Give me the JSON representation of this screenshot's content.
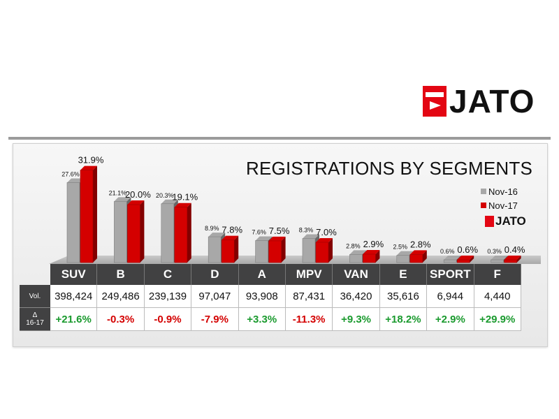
{
  "logo": {
    "text": "JATO"
  },
  "small_logo": {
    "text": "JATO"
  },
  "chart_data": {
    "type": "bar",
    "title": "REGISTRATIONS BY SEGMENTS",
    "categories": [
      "SUV",
      "B",
      "C",
      "D",
      "A",
      "MPV",
      "VAN",
      "E",
      "SPORT",
      "F"
    ],
    "series": [
      {
        "name": "Nov-16",
        "color": "#a8a8a8",
        "values": [
          27.6,
          21.1,
          20.3,
          8.9,
          7.6,
          8.3,
          2.8,
          2.5,
          0.6,
          0.3
        ],
        "labels": [
          "27.6%",
          "21.1%",
          "20.3%",
          "8.9%",
          "7.6%",
          "8.3%",
          "2.8%",
          "2.5%",
          "0.6%",
          "0.3%"
        ]
      },
      {
        "name": "Nov-17",
        "color": "#d40000",
        "values": [
          31.9,
          20.0,
          19.1,
          7.8,
          7.5,
          7.0,
          2.9,
          2.8,
          0.6,
          0.4
        ],
        "labels": [
          "31.9%",
          "20.0%",
          "19.1%",
          "7.8%",
          "7.5%",
          "7.0%",
          "2.9%",
          "2.8%",
          "0.6%",
          "0.4%"
        ]
      }
    ],
    "legend": "right",
    "grid": false
  },
  "table": {
    "vol_label": "Vol.",
    "chg_label_1": "Δ",
    "chg_label_2": "16-17",
    "volumes": [
      "398,424",
      "249,486",
      "239,139",
      "97,047",
      "93,908",
      "87,431",
      "36,420",
      "35,616",
      "6,944",
      "4,440"
    ],
    "changes": [
      "+21.6%",
      "-0.3%",
      "-0.9%",
      "-7.9%",
      "+3.3%",
      "-11.3%",
      "+9.3%",
      "+18.2%",
      "+2.9%",
      "+29.9%"
    ]
  }
}
